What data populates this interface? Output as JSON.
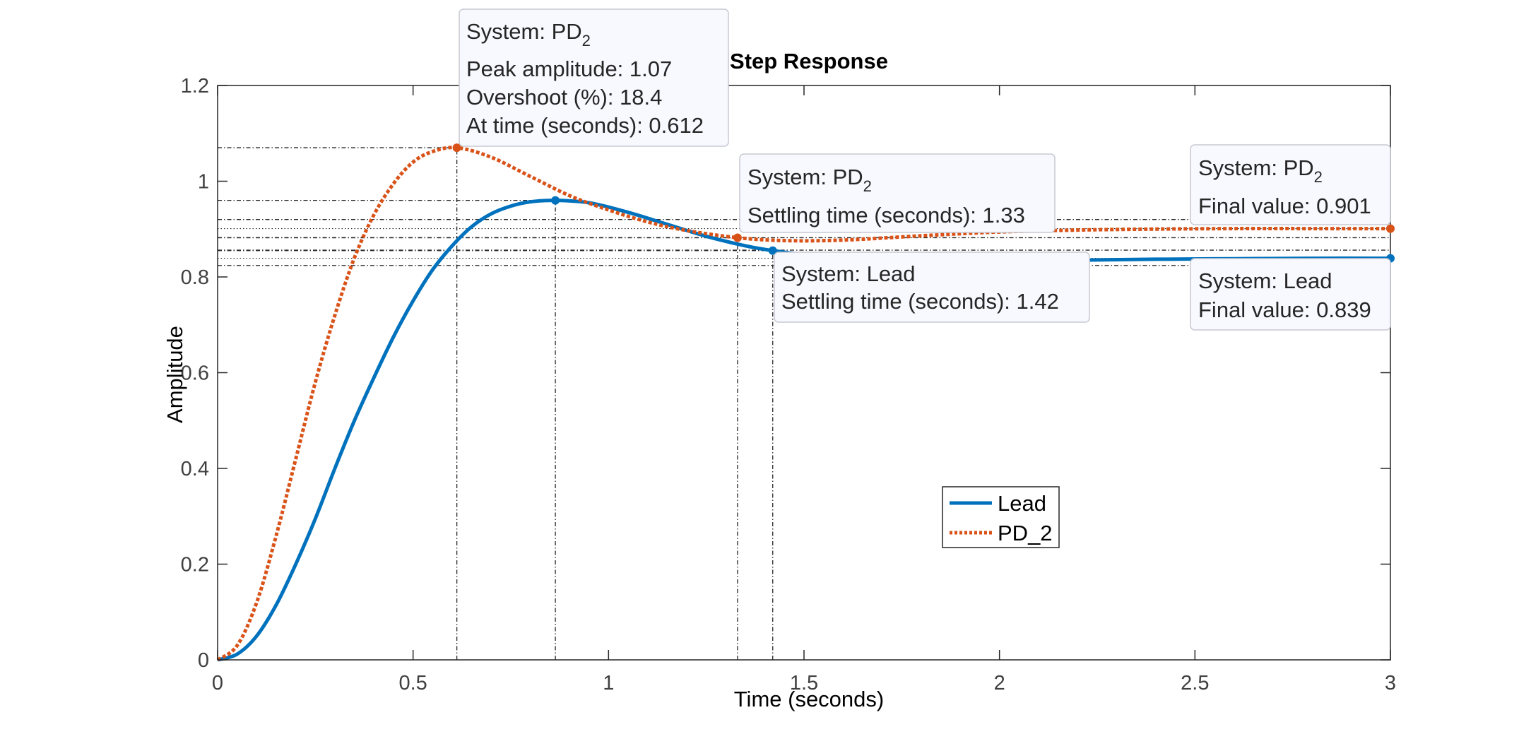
{
  "chart_data": {
    "type": "line",
    "title": "Step Response",
    "xlabel": "Time (seconds)",
    "ylabel": "Amplitude",
    "xlim": [
      0,
      3
    ],
    "ylim": [
      0,
      1.2
    ],
    "xticks": [
      0,
      0.5,
      1,
      1.5,
      2,
      2.5,
      3
    ],
    "xtick_labels": [
      "0",
      "0.5",
      "1",
      "1.5",
      "2",
      "2.5",
      "3"
    ],
    "yticks": [
      0,
      0.2,
      0.4,
      0.6,
      0.8,
      1,
      1.2
    ],
    "ytick_labels": [
      "0",
      "0.2",
      "0.4",
      "0.6",
      "0.8",
      "1",
      "1.2"
    ],
    "grid": false,
    "legend_position": "inside, center-right",
    "legend": [
      "Lead",
      "PD_2"
    ],
    "series": [
      {
        "name": "Lead",
        "color": "#0072BD",
        "style": "solid",
        "x": [
          0,
          0.05,
          0.1,
          0.15,
          0.2,
          0.25,
          0.3,
          0.35,
          0.4,
          0.45,
          0.5,
          0.55,
          0.6,
          0.65,
          0.7,
          0.75,
          0.8,
          0.864,
          0.95,
          1.05,
          1.15,
          1.25,
          1.35,
          1.42,
          1.55,
          1.7,
          1.85,
          2.0,
          2.2,
          2.4,
          2.6,
          2.8,
          3.0
        ],
        "y": [
          0,
          0.012,
          0.05,
          0.115,
          0.2,
          0.295,
          0.4,
          0.5,
          0.59,
          0.675,
          0.75,
          0.815,
          0.865,
          0.905,
          0.932,
          0.948,
          0.957,
          0.96,
          0.955,
          0.935,
          0.91,
          0.885,
          0.865,
          0.855,
          0.842,
          0.835,
          0.833,
          0.833,
          0.835,
          0.837,
          0.838,
          0.839,
          0.839
        ]
      },
      {
        "name": "PD_2",
        "color": "#D95319",
        "style": "dotted",
        "x": [
          0,
          0.05,
          0.1,
          0.15,
          0.2,
          0.25,
          0.3,
          0.35,
          0.4,
          0.45,
          0.5,
          0.55,
          0.612,
          0.7,
          0.8,
          0.9,
          1.0,
          1.1,
          1.2,
          1.33,
          1.45,
          1.6,
          1.8,
          2.0,
          2.2,
          2.4,
          2.6,
          2.8,
          3.0
        ],
        "y": [
          0,
          0.03,
          0.12,
          0.26,
          0.42,
          0.58,
          0.72,
          0.84,
          0.93,
          0.995,
          1.04,
          1.062,
          1.07,
          1.05,
          1.01,
          0.97,
          0.94,
          0.915,
          0.897,
          0.882,
          0.876,
          0.877,
          0.886,
          0.894,
          0.898,
          0.9,
          0.901,
          0.901,
          0.901
        ]
      }
    ],
    "markers": [
      {
        "series": "PD_2",
        "x": 0.612,
        "y": 1.07,
        "color": "#D95319"
      },
      {
        "series": "Lead",
        "x": 0.864,
        "y": 0.96,
        "color": "#0072BD"
      },
      {
        "series": "PD_2",
        "x": 1.33,
        "y": 0.882,
        "color": "#D95319"
      },
      {
        "series": "Lead",
        "x": 1.42,
        "y": 0.855,
        "color": "#0072BD"
      },
      {
        "series": "PD_2",
        "x": 3.0,
        "y": 0.901,
        "color": "#D95319"
      },
      {
        "series": "Lead",
        "x": 3.0,
        "y": 0.839,
        "color": "#0072BD"
      }
    ],
    "annotations": [
      {
        "id": "pd2-peak",
        "system_label": "System: PD",
        "system_sub": "2",
        "lines": [
          "Peak amplitude: 1.07",
          "Overshoot (%): 18.4",
          "At time (seconds): 0.612"
        ]
      },
      {
        "id": "pd2-settling",
        "system_label": "System: PD",
        "system_sub": "2",
        "lines": [
          "Settling time (seconds): 1.33"
        ]
      },
      {
        "id": "lead-settling",
        "system_label": "System: Lead",
        "system_sub": "",
        "lines": [
          "Settling time (seconds): 1.42"
        ]
      },
      {
        "id": "pd2-final",
        "system_label": "System: PD",
        "system_sub": "2",
        "lines": [
          "Final value: 0.901"
        ]
      },
      {
        "id": "lead-final",
        "system_label": "System: Lead",
        "system_sub": "",
        "lines": [
          "Final value: 0.839"
        ]
      }
    ]
  }
}
